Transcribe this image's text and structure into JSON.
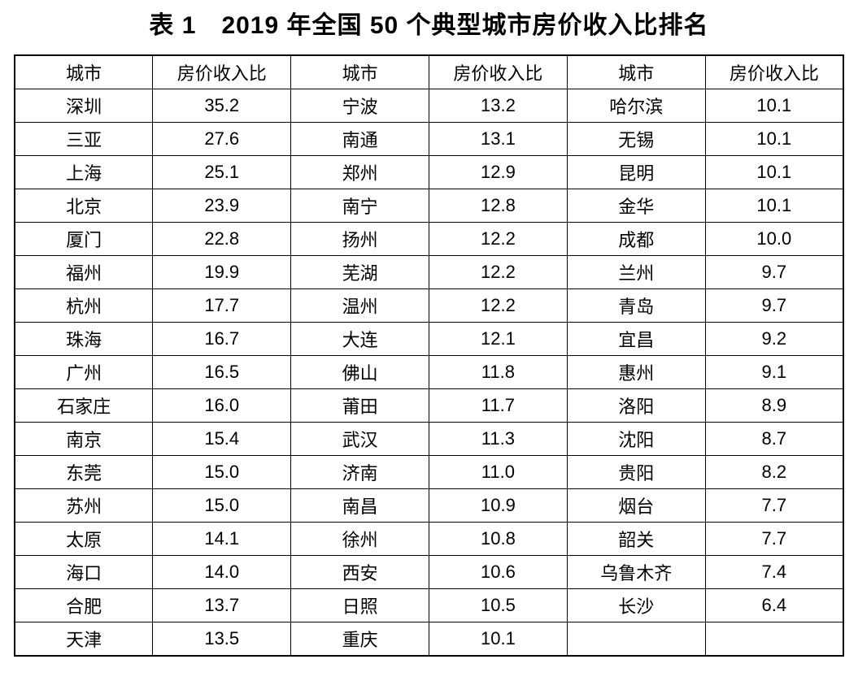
{
  "title": "表 1　2019 年全国 50 个典型城市房价收入比排名",
  "table": {
    "headers": [
      "城市",
      "房价收入比",
      "城市",
      "房价收入比",
      "城市",
      "房价收入比"
    ],
    "rows": [
      [
        "深圳",
        "35.2",
        "宁波",
        "13.2",
        "哈尔滨",
        "10.1"
      ],
      [
        "三亚",
        "27.6",
        "南通",
        "13.1",
        "无锡",
        "10.1"
      ],
      [
        "上海",
        "25.1",
        "郑州",
        "12.9",
        "昆明",
        "10.1"
      ],
      [
        "北京",
        "23.9",
        "南宁",
        "12.8",
        "金华",
        "10.1"
      ],
      [
        "厦门",
        "22.8",
        "扬州",
        "12.2",
        "成都",
        "10.0"
      ],
      [
        "福州",
        "19.9",
        "芜湖",
        "12.2",
        "兰州",
        "9.7"
      ],
      [
        "杭州",
        "17.7",
        "温州",
        "12.2",
        "青岛",
        "9.7"
      ],
      [
        "珠海",
        "16.7",
        "大连",
        "12.1",
        "宜昌",
        "9.2"
      ],
      [
        "广州",
        "16.5",
        "佛山",
        "11.8",
        "惠州",
        "9.1"
      ],
      [
        "石家庄",
        "16.0",
        "莆田",
        "11.7",
        "洛阳",
        "8.9"
      ],
      [
        "南京",
        "15.4",
        "武汉",
        "11.3",
        "沈阳",
        "8.7"
      ],
      [
        "东莞",
        "15.0",
        "济南",
        "11.0",
        "贵阳",
        "8.2"
      ],
      [
        "苏州",
        "15.0",
        "南昌",
        "10.9",
        "烟台",
        "7.7"
      ],
      [
        "太原",
        "14.1",
        "徐州",
        "10.8",
        "韶关",
        "7.7"
      ],
      [
        "海口",
        "14.0",
        "西安",
        "10.6",
        "乌鲁木齐",
        "7.4"
      ],
      [
        "合肥",
        "13.7",
        "日照",
        "10.5",
        "长沙",
        "6.4"
      ],
      [
        "天津",
        "13.5",
        "重庆",
        "10.1",
        "",
        ""
      ]
    ],
    "colors": {
      "text": "#000000",
      "border": "#000000",
      "background": "#ffffff"
    }
  }
}
